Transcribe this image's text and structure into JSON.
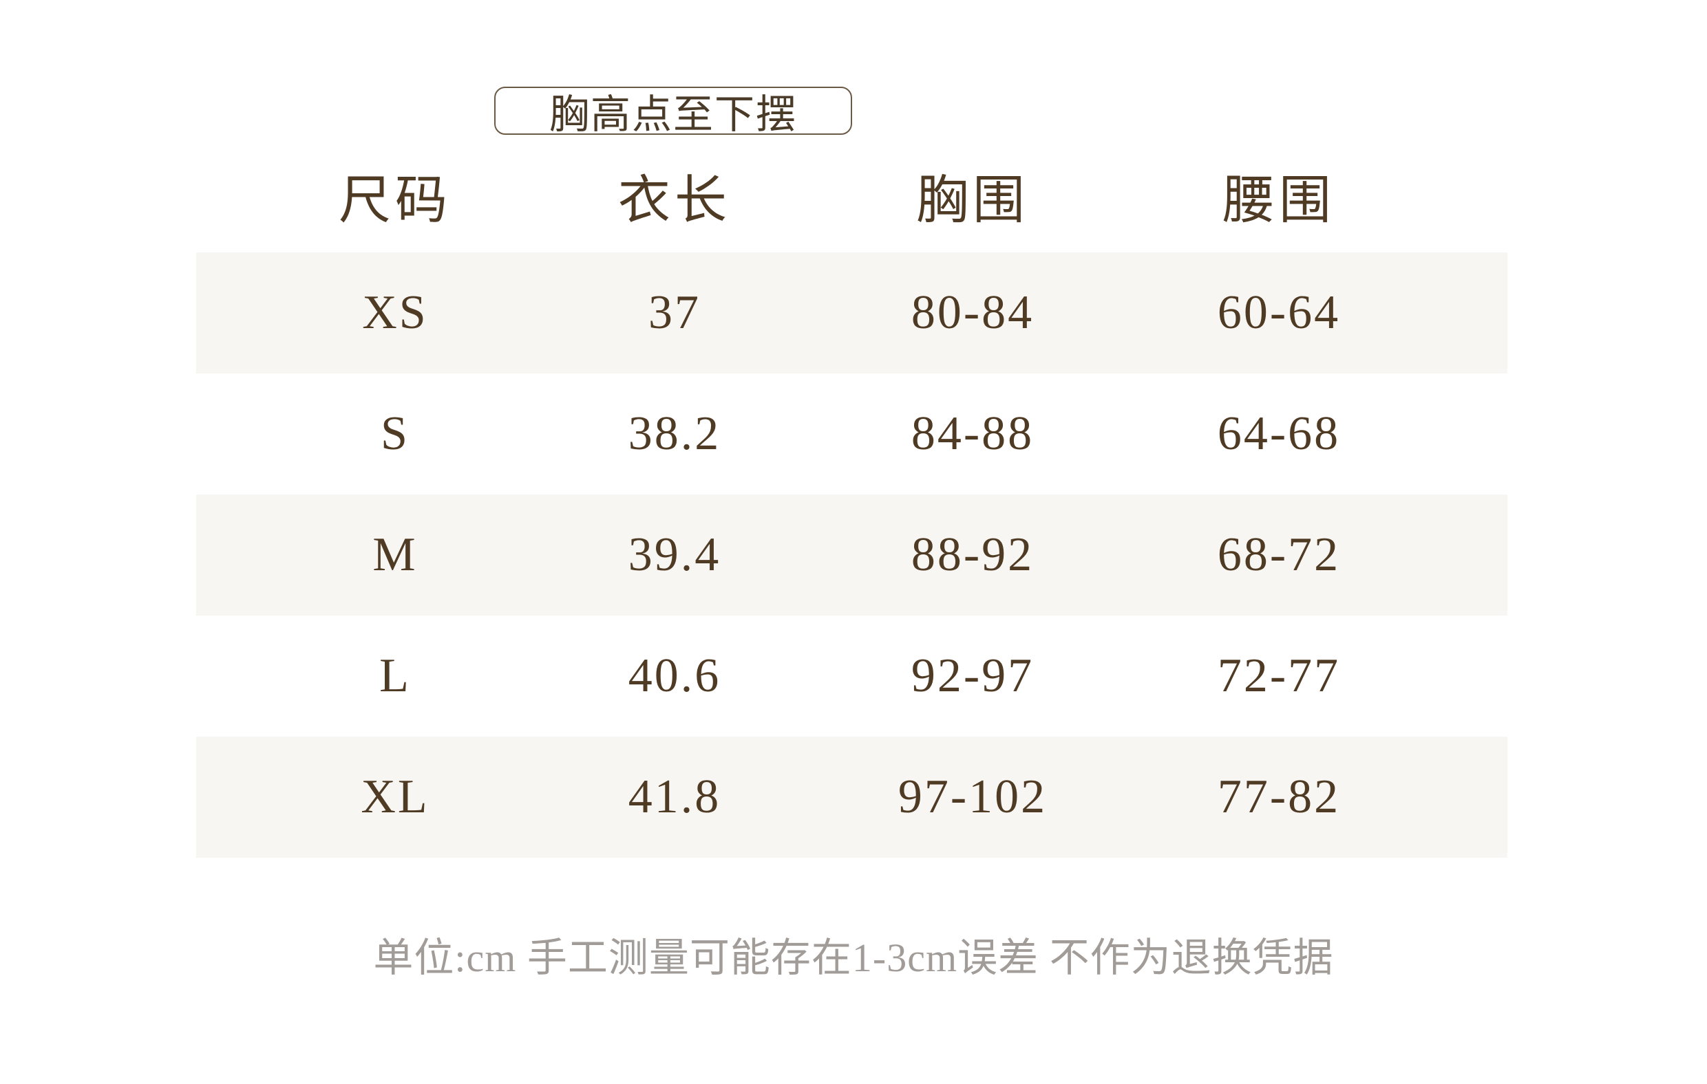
{
  "badge": "胸高点至下摆",
  "headers": [
    "尺码",
    "衣长",
    "胸围",
    "腰围"
  ],
  "rows": [
    [
      "XS",
      "37",
      "80-84",
      "60-64"
    ],
    [
      "S",
      "38.2",
      "84-88",
      "64-68"
    ],
    [
      "M",
      "39.4",
      "88-92",
      "68-72"
    ],
    [
      "L",
      "40.6",
      "92-97",
      "72-77"
    ],
    [
      "XL",
      "41.8",
      "97-102",
      "77-82"
    ]
  ],
  "footer": "单位:cm 手工测量可能存在1-3cm误差 不作为退换凭据",
  "colors": {
    "text": "#4f3a24",
    "row_shade": "#f8f6f3",
    "footer_text": "#a29c99"
  }
}
